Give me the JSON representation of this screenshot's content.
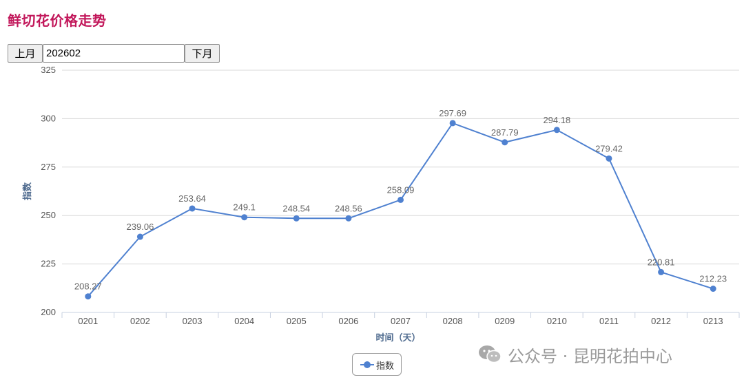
{
  "page": {
    "title": "鲜切花价格走势"
  },
  "month_nav": {
    "prev_label": "上月",
    "month_value": "202602",
    "next_label": "下月"
  },
  "colors": {
    "title": "#c2185b",
    "series": "#4f81d0",
    "axis_title": "#4e6a8e"
  },
  "chart_data": {
    "type": "line",
    "title": "",
    "xlabel": "时间（天）",
    "ylabel": "指数",
    "categories": [
      "0201",
      "0202",
      "0203",
      "0204",
      "0205",
      "0206",
      "0207",
      "0208",
      "0209",
      "0210",
      "0211",
      "0212",
      "0213"
    ],
    "series": [
      {
        "name": "指数",
        "values": [
          208.27,
          239.06,
          253.64,
          249.1,
          248.54,
          248.56,
          258.09,
          297.69,
          287.79,
          294.18,
          279.42,
          220.81,
          212.23
        ],
        "labels": [
          "208.27",
          "239.06",
          "253.64",
          "249.1",
          "248.54",
          "248.56",
          "258.09",
          "297.69",
          "287.79",
          "294.18",
          "279.42",
          "220.81",
          "212.23"
        ]
      }
    ],
    "ylim": [
      200,
      325
    ],
    "yticks": [
      "200",
      "225",
      "250",
      "275",
      "300",
      "325"
    ],
    "grid": true,
    "legend_position": "bottom-center"
  },
  "watermark": {
    "text": "公众号 · 昆明花拍中心",
    "icon": "wechat-icon"
  }
}
